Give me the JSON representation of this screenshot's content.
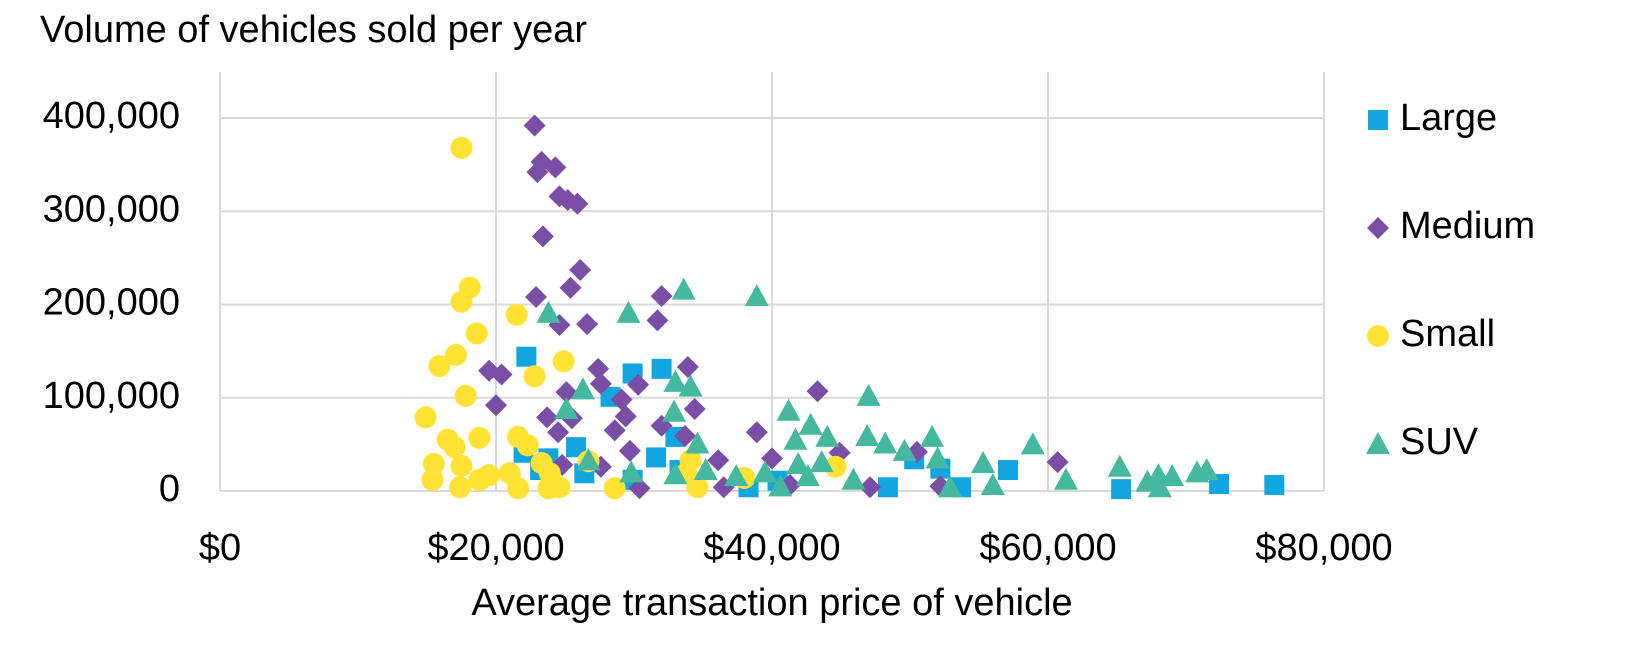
{
  "chart_data": {
    "type": "scatter",
    "title": "Volume of vehicles sold per year",
    "x_label": "Average transaction price of vehicle",
    "xlim": [
      0,
      80000
    ],
    "xticks": [
      {
        "value": 0,
        "label": "$0"
      },
      {
        "value": 20000,
        "label": "$20,000"
      },
      {
        "value": 40000,
        "label": "$40,000"
      },
      {
        "value": 60000,
        "label": "$60,000"
      },
      {
        "value": 80000,
        "label": "$80,000"
      }
    ],
    "ylim": [
      0,
      400000
    ],
    "yticks": [
      0,
      {
        "value": 100000,
        "label": "100,000"
      },
      {
        "value": 200000,
        "label": "200,000"
      },
      {
        "value": 300000,
        "label": "300,000"
      },
      {
        "value": 400000,
        "label": "400,000"
      }
    ],
    "grid": true,
    "legend": "right",
    "series": [
      {
        "name": "Large",
        "color": "#13a5e0",
        "marker": "square",
        "x": [
          22200,
          29900,
          32000,
          28300,
          25800,
          33000,
          22000,
          31600,
          26400,
          23200,
          23800,
          38300,
          40400,
          48400,
          50300,
          52200,
          53700,
          57100,
          65300,
          72400,
          76400,
          29900,
          33300
        ],
        "values": [
          144000,
          126000,
          131000,
          101000,
          47000,
          58000,
          41000,
          36000,
          19000,
          22500,
          35000,
          4000,
          11000,
          4000,
          34000,
          24000,
          4000,
          22500,
          2000,
          7500,
          6500,
          12000,
          22500
        ]
      },
      {
        "name": "Medium",
        "color": "#7a4ea6",
        "marker": "diamond",
        "x": [
          22800,
          23300,
          23000,
          24300,
          24600,
          25200,
          25900,
          23400,
          26100,
          25400,
          22900,
          26600,
          24600,
          32000,
          31700,
          19500,
          20400,
          20000,
          27400,
          27600,
          30300,
          33900,
          25100,
          23700,
          25500,
          29100,
          29400,
          28600,
          34400,
          32000,
          33700,
          24500,
          29700,
          27600,
          24800,
          36100,
          38900,
          40000,
          43300,
          44900,
          47100,
          50500,
          52200,
          60700,
          30400,
          36500,
          41300
        ],
        "values": [
          392000,
          353000,
          342000,
          347000,
          316000,
          312000,
          308000,
          273000,
          237000,
          218000,
          208000,
          179000,
          178000,
          209000,
          183000,
          129000,
          125000,
          92000,
          131000,
          115000,
          114000,
          133000,
          106000,
          79000,
          78000,
          98000,
          80000,
          65000,
          88000,
          70000,
          59000,
          63000,
          43000,
          26000,
          28000,
          33000,
          63000,
          35000,
          107000,
          41000,
          4000,
          42000,
          5000,
          31000,
          3000,
          4000,
          6500
        ]
      },
      {
        "name": "Small",
        "color": "#ffe234",
        "marker": "circle",
        "x": [
          17500,
          18100,
          17500,
          18600,
          17100,
          15900,
          17800,
          21500,
          24900,
          22800,
          14900,
          18800,
          16500,
          17000,
          21600,
          22300,
          15500,
          17500,
          19500,
          21000,
          18800,
          15400,
          17400,
          21600,
          23900,
          24600,
          23300,
          23800,
          26700,
          28600,
          34100,
          34600,
          38000,
          44600,
          33800
        ],
        "values": [
          368000,
          218000,
          203000,
          169000,
          146000,
          134000,
          102000,
          189000,
          139000,
          123000,
          79000,
          57000,
          55000,
          47000,
          58000,
          49000,
          29000,
          27000,
          17000,
          19000,
          12000,
          12000,
          4000,
          3000,
          19000,
          4000,
          30000,
          3000,
          32000,
          3000,
          33000,
          4000,
          14000,
          26000,
          19000
        ]
      },
      {
        "name": "SUV",
        "color": "#45b8a0",
        "marker": "triangle",
        "x": [
          33600,
          38900,
          29600,
          23800,
          33000,
          34100,
          26300,
          25100,
          32900,
          34600,
          47000,
          41200,
          42800,
          41700,
          44000,
          46900,
          48200,
          49600,
          51600,
          52000,
          55300,
          58900,
          26700,
          29800,
          33000,
          35200,
          39500,
          37400,
          41900,
          43600,
          42600,
          45900,
          40600,
          52900,
          56000,
          61300,
          65200,
          67200,
          68000,
          69000,
          70800,
          71500,
          68100
        ],
        "values": [
          216000,
          209000,
          191000,
          191000,
          117000,
          112000,
          109000,
          88000,
          85000,
          51000,
          102000,
          86000,
          71000,
          55000,
          58000,
          59000,
          51000,
          43000,
          58000,
          35000,
          30000,
          50000,
          33000,
          20000,
          18000,
          22500,
          20000,
          16000,
          29000,
          31000,
          16000,
          12000,
          5000,
          4000,
          6500,
          12000,
          26000,
          10000,
          17000,
          16000,
          20000,
          22500,
          4000
        ]
      }
    ]
  }
}
